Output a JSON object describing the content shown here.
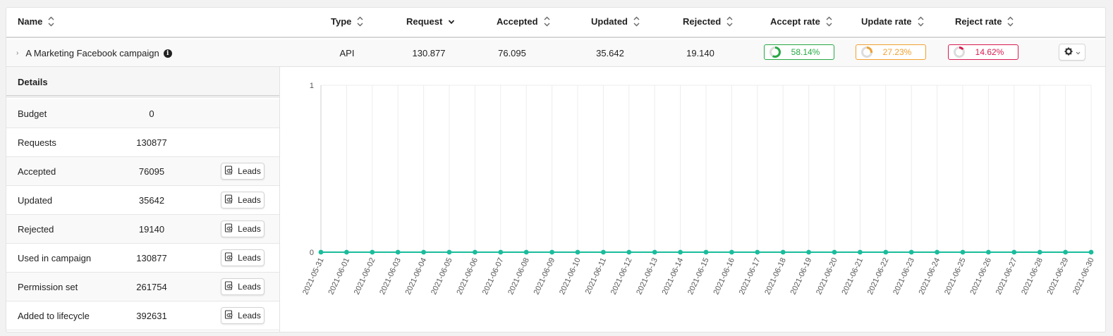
{
  "table": {
    "columns": [
      {
        "label": "Name",
        "sort": "none"
      },
      {
        "label": "Type",
        "sort": "none"
      },
      {
        "label": "Request",
        "sort": "desc"
      },
      {
        "label": "Accepted",
        "sort": "none"
      },
      {
        "label": "Updated",
        "sort": "none"
      },
      {
        "label": "Rejected",
        "sort": "none"
      },
      {
        "label": "Accept rate",
        "sort": "none"
      },
      {
        "label": "Update rate",
        "sort": "none"
      },
      {
        "label": "Reject rate",
        "sort": "none"
      }
    ]
  },
  "campaign": {
    "name": "A Marketing Facebook campaign",
    "type": "API",
    "request": "130.877",
    "accepted": "76.095",
    "updated": "35.642",
    "rejected": "19.140",
    "accept_rate": {
      "text": "58.14%",
      "value": 58.14,
      "color": "#27a844"
    },
    "update_rate": {
      "text": "27.23%",
      "value": 27.23,
      "color": "#f0a030"
    },
    "reject_rate": {
      "text": "14.62%",
      "value": 14.62,
      "color": "#d81b50"
    }
  },
  "details": {
    "title": "Details",
    "leads_label": "Leads",
    "rows": [
      {
        "label": "Budget",
        "value": "0"
      },
      {
        "label": "Requests",
        "value": "130877"
      },
      {
        "label": "Accepted",
        "value": "76095"
      },
      {
        "label": "Updated",
        "value": "35642"
      },
      {
        "label": "Rejected",
        "value": "19140"
      },
      {
        "label": "Used in campaign",
        "value": "130877"
      },
      {
        "label": "Permission set",
        "value": "261754"
      },
      {
        "label": "Added to lifecycle",
        "value": "392631"
      }
    ]
  },
  "chart_data": {
    "type": "line",
    "title": "",
    "xlabel": "",
    "ylabel": "",
    "ylim": [
      0,
      1
    ],
    "yticks": [
      "1",
      "0"
    ],
    "grid": true,
    "line_color": "#1abc9c",
    "x": [
      "2021-05-31",
      "2021-06-01",
      "2021-06-02",
      "2021-06-03",
      "2021-06-04",
      "2021-06-05",
      "2021-06-06",
      "2021-06-07",
      "2021-06-08",
      "2021-06-09",
      "2021-06-10",
      "2021-06-11",
      "2021-06-12",
      "2021-06-13",
      "2021-06-14",
      "2021-06-15",
      "2021-06-16",
      "2021-06-17",
      "2021-06-18",
      "2021-06-19",
      "2021-06-20",
      "2021-06-21",
      "2021-06-22",
      "2021-06-23",
      "2021-06-24",
      "2021-06-25",
      "2021-06-26",
      "2021-06-27",
      "2021-06-28",
      "2021-06-29",
      "2021-06-30"
    ],
    "series": [
      {
        "values": [
          0,
          0,
          0,
          0,
          0,
          0,
          0,
          0,
          0,
          0,
          0,
          0,
          0,
          0,
          0,
          0,
          0,
          0,
          0,
          0,
          0,
          0,
          0,
          0,
          0,
          0,
          0,
          0,
          0,
          0,
          0
        ]
      }
    ]
  }
}
